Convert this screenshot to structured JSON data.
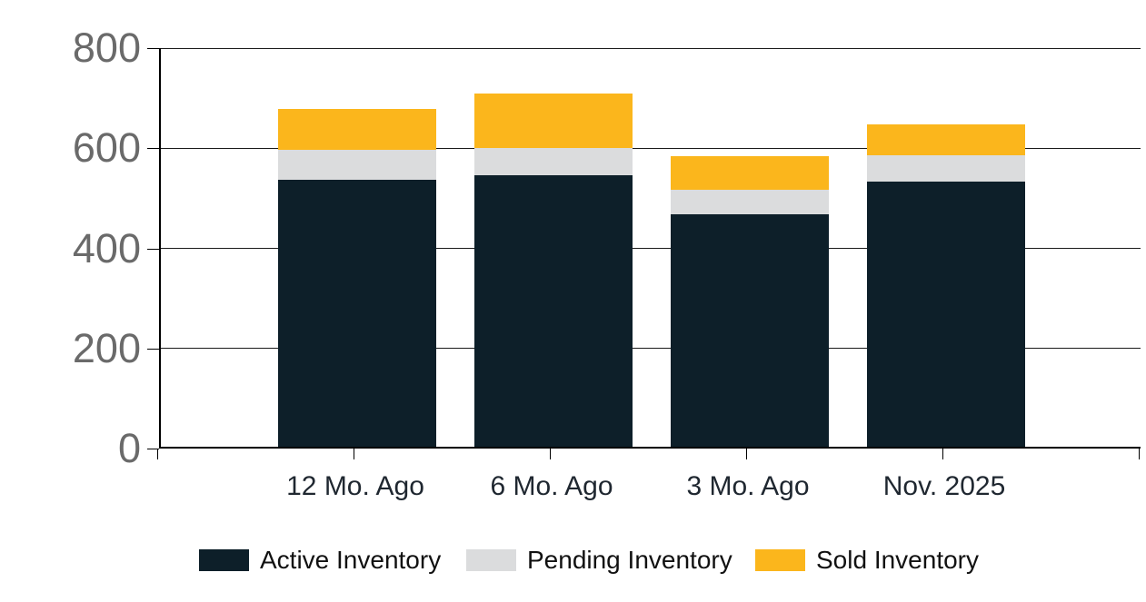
{
  "chart_data": {
    "type": "bar",
    "stacked": true,
    "title": "",
    "categories": [
      "12 Mo. Ago",
      "6 Mo. Ago",
      "3 Mo. Ago",
      "Nov. 2025"
    ],
    "series": [
      {
        "name": "Active Inventory",
        "color": "#0D1F29",
        "values": [
          533,
          542,
          465,
          530
        ]
      },
      {
        "name": "Pending Inventory",
        "color": "#DBDCDD",
        "values": [
          60,
          55,
          48,
          53
        ]
      },
      {
        "name": "Sold Inventory",
        "color": "#FBB61C",
        "values": [
          82,
          108,
          67,
          61
        ]
      }
    ],
    "totals": [
      675,
      705,
      580,
      644
    ],
    "ylim": [
      0,
      800
    ],
    "yticks": [
      0,
      200,
      400,
      600,
      800
    ],
    "grid": true,
    "legend_position": "bottom",
    "colors": {
      "background": "#FFFFFF",
      "axis": "#000000",
      "gridline": "#1A1A1A",
      "y_tick_label": "#6A6A6A",
      "x_tick_label": "#1F2730",
      "legend_text": "#111111"
    }
  }
}
